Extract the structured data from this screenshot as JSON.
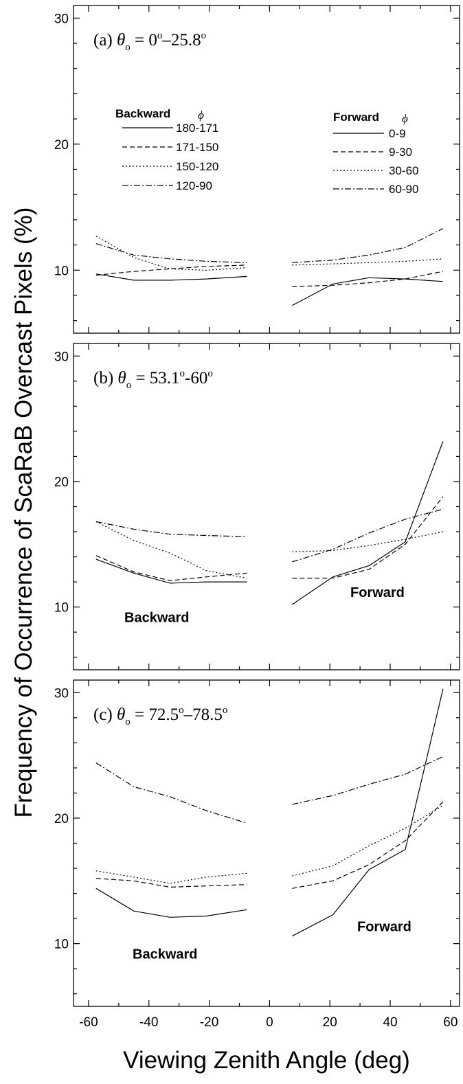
{
  "ylabel": "Frequency of Occurrence of ScaRaB Overcast Pixels (%)",
  "xlabel": "Viewing Zenith Angle (deg)",
  "styles": {
    "solid": "",
    "dashed": "7,4",
    "dotted": "2,3",
    "dashdot": "9,3,2,3"
  },
  "chart_data": [
    {
      "type": "line",
      "label": {
        "prefix": "(a) ",
        "theta": "θ",
        "sub": "o",
        "eq": " = 0",
        "sup1": "o",
        "mid": "–25.8",
        "sup2": "o"
      },
      "xlim": [
        -65,
        63
      ],
      "ylim": [
        5,
        31
      ],
      "x_ticks": [
        -60,
        -40,
        -20,
        0,
        20,
        40,
        60
      ],
      "y_ticks": [
        10,
        20,
        30
      ],
      "backward_x": [
        -57.5,
        -45,
        -33,
        -21,
        -7.5
      ],
      "forward_x": [
        7.5,
        21,
        33,
        45,
        57.5
      ],
      "backward": [
        {
          "name": "180-171",
          "style": "solid",
          "values": [
            9.7,
            9.2,
            9.2,
            9.3,
            9.5
          ]
        },
        {
          "name": "171-150",
          "style": "dashed",
          "values": [
            9.6,
            9.9,
            10.1,
            10.3,
            10.4
          ]
        },
        {
          "name": "150-120",
          "style": "dotted",
          "values": [
            12.7,
            11.0,
            10.1,
            10.0,
            10.2
          ]
        },
        {
          "name": "120-90",
          "style": "dashdot",
          "values": [
            12.1,
            11.2,
            10.9,
            10.7,
            10.6
          ]
        }
      ],
      "forward": [
        {
          "name": "0-9",
          "style": "solid",
          "values": [
            7.2,
            8.9,
            9.4,
            9.3,
            9.1
          ]
        },
        {
          "name": "9-30",
          "style": "dashed",
          "values": [
            8.7,
            8.8,
            9.0,
            9.3,
            9.9
          ]
        },
        {
          "name": "30-60",
          "style": "dotted",
          "values": [
            10.4,
            10.5,
            10.6,
            10.7,
            10.9
          ]
        },
        {
          "name": "60-90",
          "style": "dashdot",
          "values": [
            10.6,
            10.8,
            11.2,
            11.8,
            13.3
          ]
        }
      ],
      "legend": {
        "backward_title": "Backward",
        "forward_title": "Forward",
        "phi": "ϕ"
      }
    },
    {
      "type": "line",
      "label": {
        "prefix": "(b) ",
        "theta": "θ",
        "sub": "o",
        "eq": " = 53.1",
        "sup1": "o",
        "mid": "-60",
        "sup2": "o"
      },
      "xlim": [
        -65,
        63
      ],
      "ylim": [
        5,
        31
      ],
      "x_ticks": [
        -60,
        -40,
        -20,
        0,
        20,
        40,
        60
      ],
      "y_ticks": [
        10,
        20,
        30
      ],
      "backward_x": [
        -57.5,
        -45,
        -33,
        -21,
        -7.5
      ],
      "forward_x": [
        7.5,
        21,
        33,
        45,
        57.5
      ],
      "backward": [
        {
          "name": "180-171",
          "style": "solid",
          "values": [
            13.8,
            12.7,
            11.9,
            12.0,
            12.0
          ]
        },
        {
          "name": "171-150",
          "style": "dashed",
          "values": [
            14.1,
            12.8,
            12.1,
            12.4,
            12.7
          ]
        },
        {
          "name": "150-120",
          "style": "dotted",
          "values": [
            16.8,
            15.3,
            14.3,
            12.9,
            12.3
          ]
        },
        {
          "name": "120-90",
          "style": "dashdot",
          "values": [
            16.8,
            16.2,
            15.8,
            15.7,
            15.6
          ]
        }
      ],
      "forward": [
        {
          "name": "0-9",
          "style": "solid",
          "values": [
            10.2,
            12.4,
            13.3,
            15.2,
            23.2
          ]
        },
        {
          "name": "9-30",
          "style": "dashed",
          "values": [
            12.3,
            12.3,
            13.0,
            15.0,
            18.8
          ]
        },
        {
          "name": "30-60",
          "style": "dotted",
          "values": [
            14.4,
            14.5,
            14.9,
            15.4,
            16.0
          ]
        },
        {
          "name": "60-90",
          "style": "dashdot",
          "values": [
            13.6,
            14.6,
            15.9,
            17.0,
            17.8
          ]
        }
      ],
      "direction_labels": {
        "backward": "Backward",
        "forward": "Forward"
      }
    },
    {
      "type": "line",
      "label": {
        "prefix": "(c) ",
        "theta": "θ",
        "sub": "o",
        "eq": " = 72.5",
        "sup1": "o",
        "mid": "–78.5",
        "sup2": "o"
      },
      "xlim": [
        -65,
        63
      ],
      "ylim": [
        5,
        31
      ],
      "x_ticks": [
        -60,
        -40,
        -20,
        0,
        20,
        40,
        60
      ],
      "y_ticks": [
        10,
        20,
        30
      ],
      "backward_x": [
        -57.5,
        -45,
        -33,
        -21,
        -7.5
      ],
      "forward_x": [
        7.5,
        21,
        33,
        45,
        57.5
      ],
      "backward": [
        {
          "name": "180-171",
          "style": "solid",
          "values": [
            14.4,
            12.6,
            12.1,
            12.2,
            12.7
          ]
        },
        {
          "name": "171-150",
          "style": "dashed",
          "values": [
            15.2,
            15.0,
            14.5,
            14.6,
            14.7
          ]
        },
        {
          "name": "150-120",
          "style": "dotted",
          "values": [
            15.8,
            15.3,
            14.8,
            15.3,
            15.6
          ]
        },
        {
          "name": "120-90",
          "style": "dashdot",
          "values": [
            24.4,
            22.5,
            21.7,
            20.6,
            19.6
          ]
        }
      ],
      "forward": [
        {
          "name": "0-9",
          "style": "solid",
          "values": [
            10.6,
            12.3,
            15.9,
            17.5,
            30.3
          ]
        },
        {
          "name": "9-30",
          "style": "dashed",
          "values": [
            14.4,
            15.0,
            16.3,
            18.2,
            21.3
          ]
        },
        {
          "name": "30-60",
          "style": "dotted",
          "values": [
            15.4,
            16.2,
            17.8,
            19.2,
            21.0
          ]
        },
        {
          "name": "60-90",
          "style": "dashdot",
          "values": [
            21.1,
            21.8,
            22.7,
            23.5,
            24.9
          ]
        }
      ],
      "direction_labels": {
        "backward": "Backward",
        "forward": "Forward"
      }
    }
  ]
}
